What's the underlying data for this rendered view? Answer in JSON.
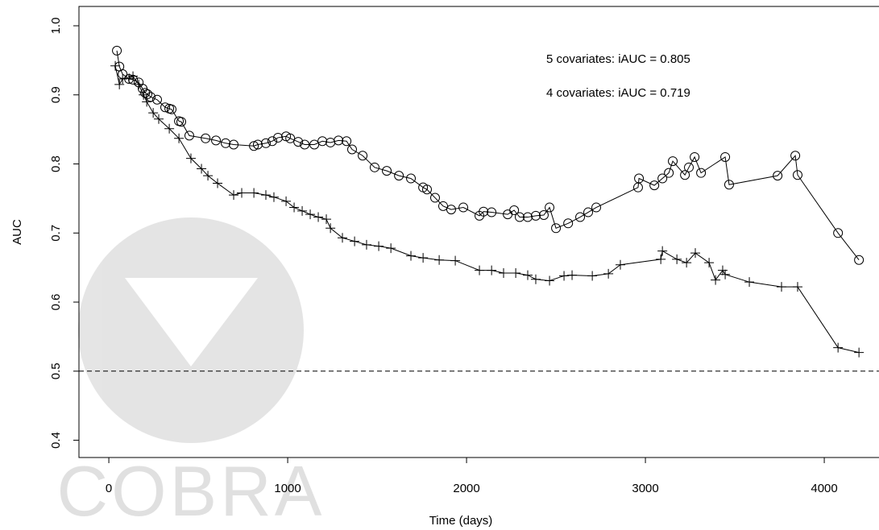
{
  "chart_data": {
    "type": "line",
    "x_label": "Time (days)",
    "y_label": "AUC",
    "xlim": [
      -167,
      4306
    ],
    "ylim": [
      0.375,
      1.028
    ],
    "xticks": [
      0,
      1000,
      2000,
      3000,
      4000
    ],
    "yticks": [
      0.4,
      0.5,
      0.6,
      0.7,
      0.8,
      0.9,
      {
        "value": 1,
        "label": "1.0"
      }
    ],
    "reference_line": 0.5,
    "annotations": [
      "5 covariates: iAUC = 0.805",
      "4 covariates: iAUC = 0.719"
    ],
    "watermark": "COBRA",
    "series": [
      {
        "marker": "circle",
        "color": "#000000",
        "x": [
          45,
          59,
          77,
          113,
          135,
          167,
          189,
          203,
          216,
          234,
          270,
          315,
          338,
          351,
          392,
          405,
          450,
          541,
          599,
          653,
          698,
          811,
          833,
          878,
          914,
          946,
          991,
          1014,
          1059,
          1095,
          1149,
          1194,
          1239,
          1284,
          1329,
          1360,
          1419,
          1486,
          1554,
          1622,
          1689,
          1757,
          1779,
          1824,
          1869,
          1914,
          1982,
          2072,
          2095,
          2140,
          2230,
          2266,
          2297,
          2342,
          2387,
          2432,
          2464,
          2500,
          2568,
          2635,
          2680,
          2725,
          2959,
          2964,
          3050,
          3095,
          3131,
          3153,
          3221,
          3243,
          3275,
          3311,
          3446,
          3468,
          3739,
          3838,
          3851,
          4077,
          4194
        ],
        "values": [
          0.964,
          0.941,
          0.93,
          0.923,
          0.922,
          0.918,
          0.909,
          0.903,
          0.901,
          0.897,
          0.893,
          0.882,
          0.88,
          0.879,
          0.862,
          0.861,
          0.841,
          0.837,
          0.834,
          0.83,
          0.828,
          0.826,
          0.828,
          0.83,
          0.833,
          0.838,
          0.84,
          0.837,
          0.832,
          0.828,
          0.828,
          0.833,
          0.831,
          0.834,
          0.833,
          0.821,
          0.812,
          0.795,
          0.79,
          0.783,
          0.779,
          0.766,
          0.763,
          0.751,
          0.739,
          0.734,
          0.737,
          0.725,
          0.731,
          0.73,
          0.727,
          0.733,
          0.723,
          0.723,
          0.725,
          0.726,
          0.737,
          0.707,
          0.714,
          0.723,
          0.73,
          0.737,
          0.766,
          0.779,
          0.769,
          0.779,
          0.787,
          0.804,
          0.784,
          0.795,
          0.81,
          0.787,
          0.81,
          0.77,
          0.783,
          0.812,
          0.784,
          0.7,
          0.661
        ]
      },
      {
        "marker": "plus",
        "color": "#000000",
        "x": [
          36,
          59,
          77,
          113,
          135,
          167,
          194,
          212,
          248,
          279,
          338,
          392,
          459,
          518,
          554,
          608,
          698,
          743,
          811,
          878,
          923,
          991,
          1036,
          1081,
          1126,
          1171,
          1216,
          1239,
          1306,
          1374,
          1441,
          1509,
          1577,
          1689,
          1757,
          1847,
          1937,
          2072,
          2140,
          2207,
          2275,
          2342,
          2387,
          2464,
          2545,
          2590,
          2703,
          2793,
          2860,
          3086,
          3095,
          3176,
          3230,
          3279,
          3356,
          3392,
          3432,
          3446,
          3581,
          3761,
          3851,
          4077,
          4194
        ],
        "values": [
          0.942,
          0.915,
          0.923,
          0.924,
          0.927,
          0.915,
          0.9,
          0.89,
          0.874,
          0.865,
          0.851,
          0.837,
          0.808,
          0.793,
          0.783,
          0.772,
          0.755,
          0.758,
          0.758,
          0.755,
          0.752,
          0.746,
          0.737,
          0.732,
          0.727,
          0.723,
          0.72,
          0.707,
          0.693,
          0.688,
          0.683,
          0.681,
          0.678,
          0.667,
          0.664,
          0.661,
          0.66,
          0.646,
          0.646,
          0.642,
          0.642,
          0.639,
          0.633,
          0.631,
          0.638,
          0.639,
          0.638,
          0.641,
          0.654,
          0.662,
          0.674,
          0.662,
          0.657,
          0.671,
          0.657,
          0.632,
          0.646,
          0.64,
          0.629,
          0.622,
          0.622,
          0.534,
          0.527
        ]
      }
    ]
  }
}
